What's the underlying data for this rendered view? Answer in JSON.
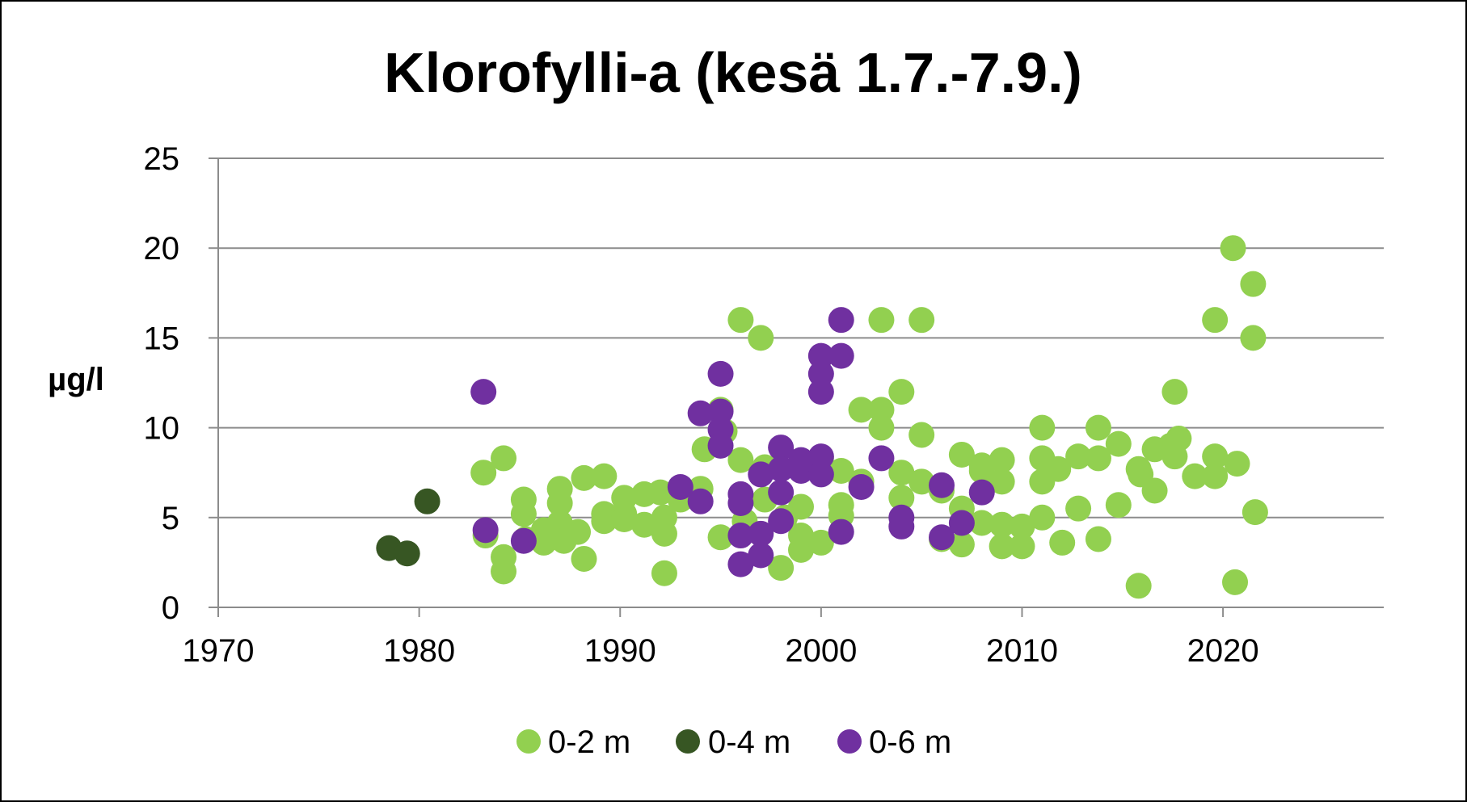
{
  "chart_data": {
    "type": "scatter",
    "title": "Klorofylli-a (kesä 1.7.-7.9.)",
    "xlabel": "",
    "ylabel": "µg/l",
    "xlim": [
      1970,
      2028
    ],
    "ylim": [
      0,
      25
    ],
    "xticks": [
      "1970",
      "1980",
      "1990",
      "2000",
      "2010",
      "2020"
    ],
    "yticks": [
      "0",
      "5",
      "10",
      "15",
      "20",
      "25"
    ],
    "grid": true,
    "legend_position": "bottom",
    "series": [
      {
        "name": "0-2 m",
        "color": "#92d050",
        "points": [
          [
            1983.2,
            7.5
          ],
          [
            1983.3,
            4
          ],
          [
            1984.2,
            8.3
          ],
          [
            1984.2,
            2.8
          ],
          [
            1984.2,
            2
          ],
          [
            1985.2,
            6
          ],
          [
            1985.2,
            5.2
          ],
          [
            1985.3,
            3.8
          ],
          [
            1986.2,
            4.3
          ],
          [
            1986.2,
            3.6
          ],
          [
            1987,
            6.6
          ],
          [
            1987,
            5.8
          ],
          [
            1987,
            4.7
          ],
          [
            1987.2,
            3.7
          ],
          [
            1987.9,
            4.2
          ],
          [
            1988.2,
            7.2
          ],
          [
            1988.2,
            2.7
          ],
          [
            1989.2,
            7.3
          ],
          [
            1989.2,
            5.2
          ],
          [
            1989.2,
            4.8
          ],
          [
            1990.2,
            6.1
          ],
          [
            1990.2,
            5.2
          ],
          [
            1990.2,
            4.9
          ],
          [
            1991.2,
            6.3
          ],
          [
            1991.2,
            4.6
          ],
          [
            1992,
            6.4
          ],
          [
            1992.2,
            5
          ],
          [
            1992.2,
            4.1
          ],
          [
            1992.2,
            1.9
          ],
          [
            1993,
            6
          ],
          [
            1994,
            6.6
          ],
          [
            1994.2,
            8.8
          ],
          [
            1995,
            11
          ],
          [
            1995,
            3.9
          ],
          [
            1995.2,
            9.8
          ],
          [
            1996,
            16
          ],
          [
            1996,
            8.2
          ],
          [
            1996.2,
            4.8
          ],
          [
            1997,
            15
          ],
          [
            1997.2,
            7.8
          ],
          [
            1997.2,
            6
          ],
          [
            1998,
            2.2
          ],
          [
            1998.2,
            5
          ],
          [
            1999,
            5.6
          ],
          [
            1999,
            4
          ],
          [
            1999,
            3.2
          ],
          [
            2000,
            8.3
          ],
          [
            2000,
            3.6
          ],
          [
            2001,
            7.6
          ],
          [
            2001,
            5.7
          ],
          [
            2001,
            5.1
          ],
          [
            2002,
            11
          ],
          [
            2002,
            7
          ],
          [
            2003,
            16
          ],
          [
            2003,
            11
          ],
          [
            2003,
            10
          ],
          [
            2004,
            12
          ],
          [
            2004,
            7.5
          ],
          [
            2004,
            6.1
          ],
          [
            2005,
            16
          ],
          [
            2005,
            9.6
          ],
          [
            2005,
            7
          ],
          [
            2006,
            6.5
          ],
          [
            2006,
            3.8
          ],
          [
            2007,
            8.5
          ],
          [
            2007,
            5.5
          ],
          [
            2007,
            3.5
          ],
          [
            2008,
            7.9
          ],
          [
            2008,
            7.6
          ],
          [
            2008,
            4.7
          ],
          [
            2009,
            8.2
          ],
          [
            2009,
            7
          ],
          [
            2009,
            4.6
          ],
          [
            2009,
            3.4
          ],
          [
            2010,
            4.5
          ],
          [
            2010,
            3.4
          ],
          [
            2011,
            10
          ],
          [
            2011,
            8.3
          ],
          [
            2011,
            7
          ],
          [
            2011,
            5
          ],
          [
            2011.8,
            7.7
          ],
          [
            2012,
            3.6
          ],
          [
            2012.8,
            8.4
          ],
          [
            2012.8,
            5.5
          ],
          [
            2013.8,
            10
          ],
          [
            2013.8,
            8.3
          ],
          [
            2013.8,
            3.8
          ],
          [
            2014.8,
            9.1
          ],
          [
            2014.8,
            5.7
          ],
          [
            2015.8,
            7.7
          ],
          [
            2015.9,
            7.4
          ],
          [
            2015.8,
            1.2
          ],
          [
            2016.6,
            8.8
          ],
          [
            2016.6,
            6.5
          ],
          [
            2017.4,
            9
          ],
          [
            2017.6,
            12
          ],
          [
            2017.8,
            9.4
          ],
          [
            2017.6,
            8.4
          ],
          [
            2018.6,
            7.3
          ],
          [
            2019.6,
            16
          ],
          [
            2019.6,
            8.4
          ],
          [
            2019.6,
            7.3
          ],
          [
            2020.5,
            20
          ],
          [
            2020.7,
            8
          ],
          [
            2020.6,
            1.4
          ],
          [
            2021.5,
            18
          ],
          [
            2021.5,
            15
          ],
          [
            2021.6,
            5.3
          ]
        ]
      },
      {
        "name": "0-4 m",
        "color": "#375623",
        "points": [
          [
            1978.5,
            3.3
          ],
          [
            1979.4,
            3
          ],
          [
            1980.4,
            5.9
          ]
        ]
      },
      {
        "name": "0-6 m",
        "color": "#7030a0",
        "points": [
          [
            1983.2,
            12
          ],
          [
            1983.3,
            4.3
          ],
          [
            1985.2,
            3.7
          ],
          [
            1993,
            6.7
          ],
          [
            1994,
            10.8
          ],
          [
            1994,
            5.9
          ],
          [
            1995,
            13
          ],
          [
            1995,
            10.9
          ],
          [
            1995,
            9.9
          ],
          [
            1995,
            9
          ],
          [
            1996,
            6.3
          ],
          [
            1996,
            5.8
          ],
          [
            1996,
            4
          ],
          [
            1996,
            2.4
          ],
          [
            1997,
            7.4
          ],
          [
            1997,
            4.1
          ],
          [
            1997,
            2.9
          ],
          [
            1998,
            8.9
          ],
          [
            1998,
            7.7
          ],
          [
            1998,
            6.4
          ],
          [
            1998,
            4.8
          ],
          [
            1999,
            8.2
          ],
          [
            1999,
            7.6
          ],
          [
            2000,
            14
          ],
          [
            2000,
            13
          ],
          [
            2000,
            12
          ],
          [
            2000,
            8.4
          ],
          [
            2000,
            7.4
          ],
          [
            2001,
            16
          ],
          [
            2001,
            14
          ],
          [
            2001,
            4.2
          ],
          [
            2002,
            6.7
          ],
          [
            2003,
            8.3
          ],
          [
            2004,
            5
          ],
          [
            2004,
            4.5
          ],
          [
            2006,
            6.8
          ],
          [
            2006,
            3.9
          ],
          [
            2007,
            4.7
          ],
          [
            2008,
            6.4
          ]
        ]
      }
    ]
  }
}
